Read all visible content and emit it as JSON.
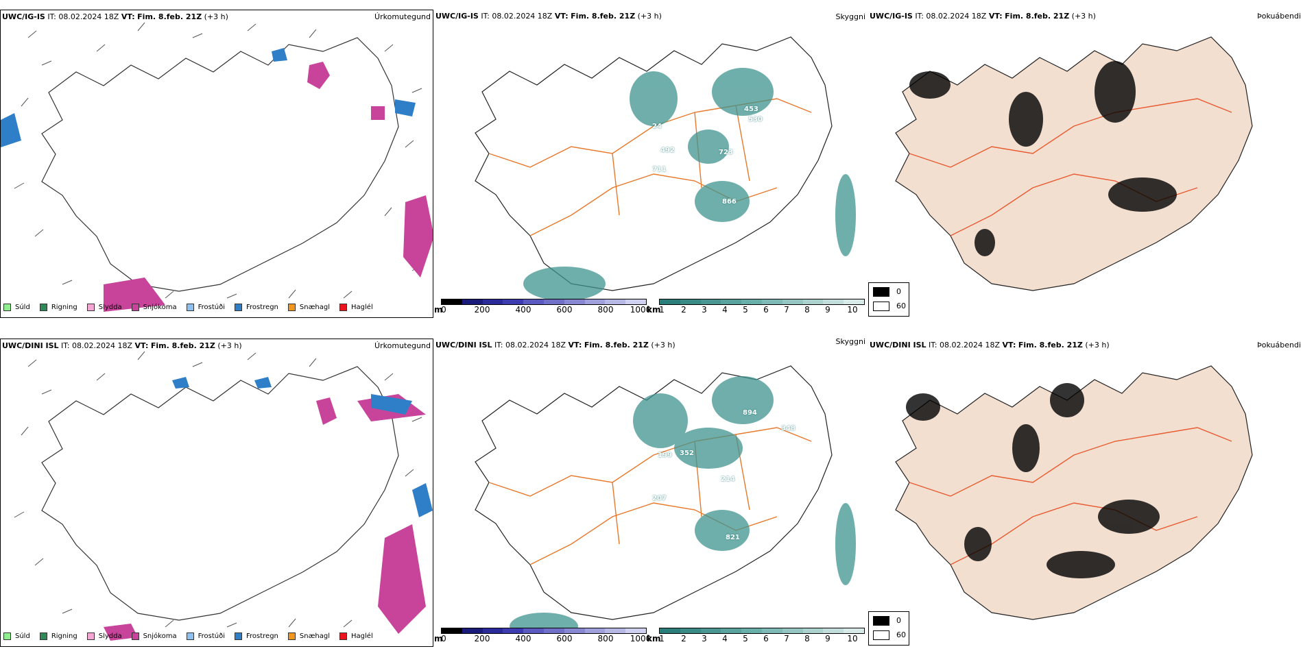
{
  "rows": [
    {
      "model": "UWC/IG-IS",
      "it_label": "IT:",
      "it_value": "08.02.2024 18Z",
      "vt_label": "VT:",
      "vt_value": "Fim. 8.feb. 21Z",
      "offset": "(+3 h)",
      "panel_titles": [
        "Úrkomutegund",
        "Skyggni",
        "Þokuábendi"
      ],
      "visibility_labels": [
        "453",
        "530",
        "492",
        "711",
        "723",
        "866",
        "24"
      ]
    },
    {
      "model": "UWC/DINI ISL",
      "it_label": "IT:",
      "it_value": "08.02.2024 18Z",
      "vt_label": "VT:",
      "vt_value": "Fim. 8.feb. 21Z",
      "offset": "(+3 h)",
      "panel_titles": [
        "Úrkomutegund",
        "Skyggni",
        "Þokuábendi"
      ],
      "visibility_labels": [
        "894",
        "348",
        "352",
        "199",
        "207",
        "214",
        "821"
      ]
    }
  ],
  "precip_legend": [
    {
      "label": "Súld",
      "color": "#90ee90"
    },
    {
      "label": "Rigning",
      "color": "#2e8b57"
    },
    {
      "label": "Slydda",
      "color": "#f4a6d2"
    },
    {
      "label": "Snjókoma",
      "color": "#c8449a"
    },
    {
      "label": "Frostúði",
      "color": "#8fc1f0"
    },
    {
      "label": "Frostregn",
      "color": "#2f7fc8"
    },
    {
      "label": "Snæhagl",
      "color": "#f0961e"
    },
    {
      "label": "Haglél",
      "color": "#e8141e"
    }
  ],
  "elevation_scale": {
    "unit": "m",
    "ticks": [
      "0",
      "200",
      "400",
      "600",
      "800",
      "1000"
    ],
    "colors": [
      "#000000",
      "#1a1a7a",
      "#2a2a9a",
      "#3c3cb0",
      "#5a5ac0",
      "#7070c8",
      "#8888d2",
      "#a0a0dc",
      "#b8b8e6",
      "#d0d0f0"
    ]
  },
  "visibility_scale": {
    "unit": "km",
    "ticks": [
      "1",
      "2",
      "3",
      "4",
      "5",
      "6",
      "7",
      "8",
      "9",
      "10"
    ],
    "colors": [
      "#2a7d78",
      "#3a8a85",
      "#4a9692",
      "#5aa29e",
      "#6aaeaa",
      "#80bab6",
      "#96c6c2",
      "#acd2ce",
      "#c2dedc",
      "#d8eae8"
    ]
  },
  "fog_legend": {
    "high": "0",
    "low": "60"
  },
  "colors": {
    "land": "#f3dfd0",
    "roads": "#e8782a",
    "coast": "#333333",
    "fog_teal": "#3f948f",
    "snow": "#c8449a",
    "frz_rain": "#2f7fc8"
  }
}
